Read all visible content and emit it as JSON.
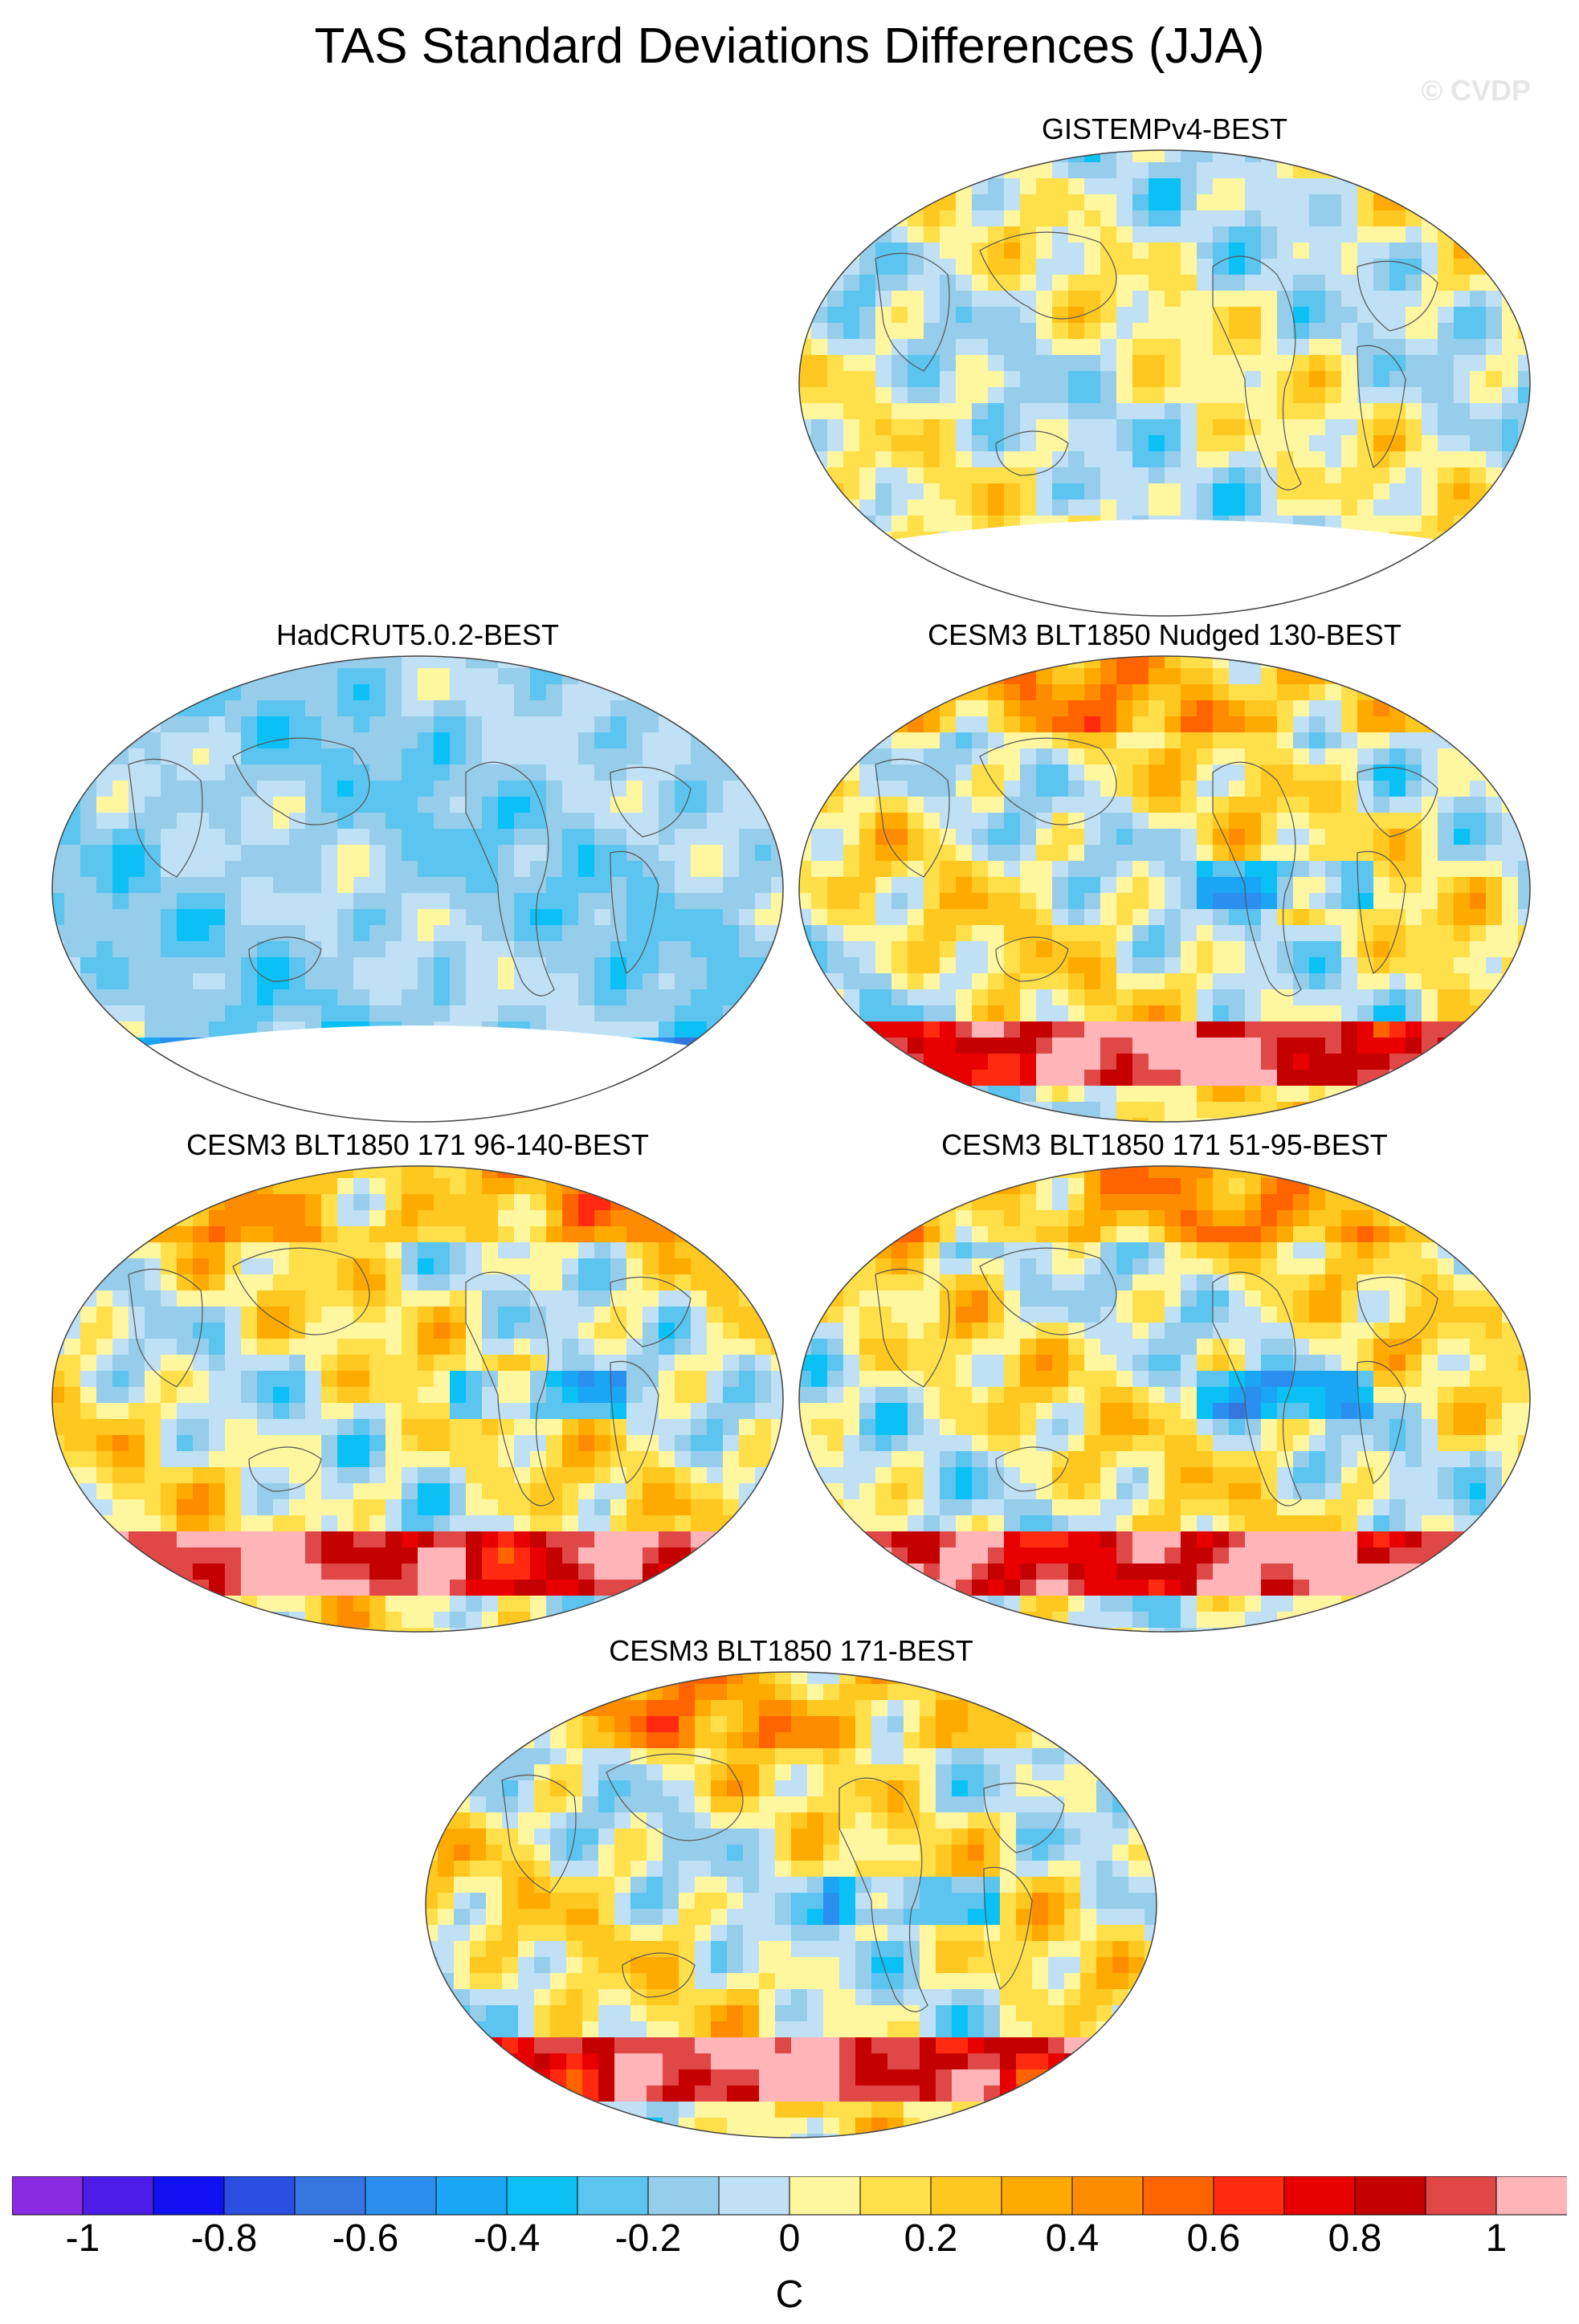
{
  "title": "TAS Standard Deviations Differences (JJA)",
  "watermark": "© CVDP",
  "panels": [
    {
      "id": "gistemp",
      "title": "GISTEMPv4-BEST",
      "theme": "blue-yellow-mix",
      "antarctic_mask": true
    },
    {
      "id": "hadcrut",
      "title": "HadCRUT5.0.2-BEST",
      "theme": "mostly-blue",
      "antarctic_mask": true
    },
    {
      "id": "nudged",
      "title": "CESM3 BLT1850 Nudged 130-BEST",
      "theme": "warm-red",
      "antarctic_mask": false
    },
    {
      "id": "m96",
      "title": "CESM3 BLT1850 171 96-140-BEST",
      "theme": "warm-red",
      "antarctic_mask": false
    },
    {
      "id": "m51",
      "title": "CESM3 BLT1850 171 51-95-BEST",
      "theme": "warm-red",
      "antarctic_mask": false
    },
    {
      "id": "m171",
      "title": "CESM3 BLT1850 171-BEST",
      "theme": "warm-red",
      "antarctic_mask": false
    }
  ],
  "colorbar": {
    "colors": [
      "#8a2be2",
      "#4b1be8",
      "#1010f0",
      "#2a4fe0",
      "#3575e0",
      "#2b8ff0",
      "#1aa5f5",
      "#0bc0f5",
      "#5bc5f0",
      "#96cdea",
      "#bfe0f5",
      "#fff6a0",
      "#ffdf4a",
      "#ffc820",
      "#ffaa00",
      "#ff8c00",
      "#ff6400",
      "#ff2a10",
      "#e80000",
      "#c40000",
      "#e04848",
      "#ffb4b8"
    ],
    "tick_labels": [
      "-1",
      "-0.8",
      "-0.6",
      "-0.4",
      "-0.2",
      "0",
      "0.2",
      "0.4",
      "0.6",
      "0.8",
      "1"
    ],
    "unit": "C"
  }
}
